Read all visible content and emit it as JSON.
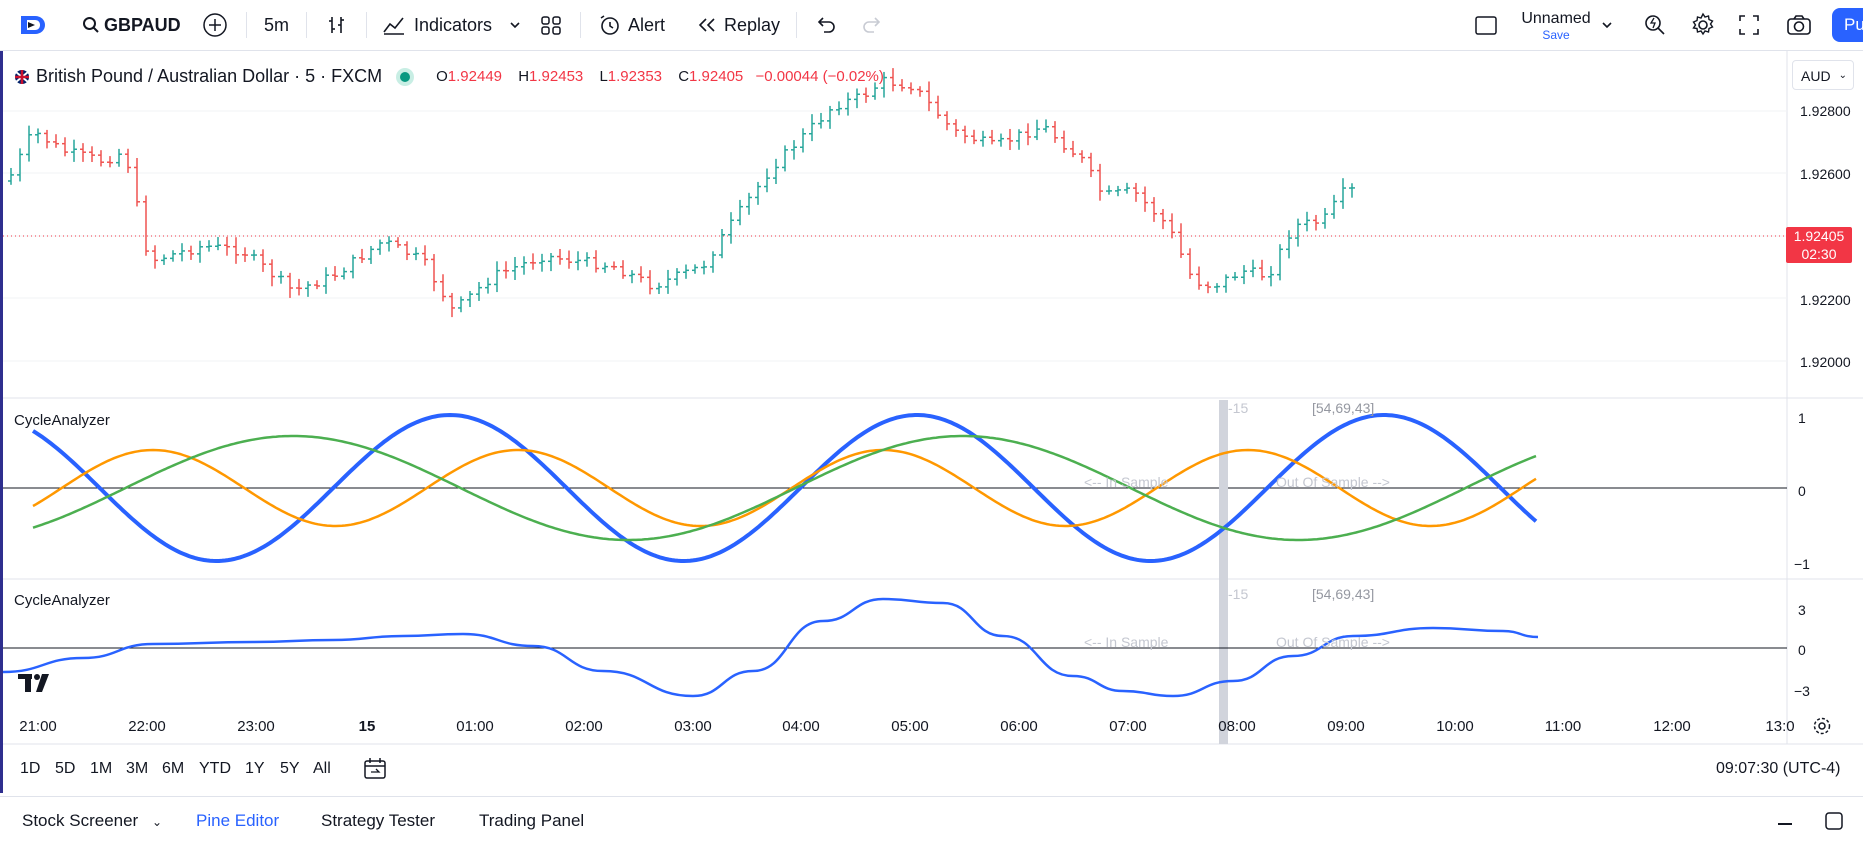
{
  "toolbar": {
    "symbol": "GBPAUD",
    "interval": "5m",
    "indicators_label": "Indicators",
    "alert_label": "Alert",
    "replay_label": "Replay",
    "layout_name": "Unnamed",
    "save_label": "Save",
    "publish_label": "Pu"
  },
  "legend": {
    "title": "British Pound / Australian Dollar · 5 · FXCM",
    "o_key": "O",
    "o_val": "1.92449",
    "h_key": "H",
    "h_val": "1.92453",
    "l_key": "L",
    "l_val": "1.92353",
    "c_key": "C",
    "c_val": "1.92405",
    "change": "−0.00044 (−0.02%)"
  },
  "currency_button": "AUD",
  "price_axis": {
    "ticks": [
      "1.92800",
      "1.92600",
      "1.92200",
      "1.92000"
    ],
    "last_price": "1.92405",
    "countdown": "02:30"
  },
  "pane1": {
    "title": "CycleAnalyzer",
    "axis": [
      "1",
      "0",
      "−1"
    ],
    "marker": "-15",
    "cycles": "[54,69,43]",
    "in_sample": "<-- In Sample",
    "out_sample": "Out Of Sample -->"
  },
  "pane2": {
    "title": "CycleAnalyzer",
    "axis": [
      "3",
      "0",
      "−3"
    ],
    "marker": "-15",
    "cycles": "[54,69,43]",
    "in_sample": "<-- In Sample",
    "out_sample": "Out Of Sample -->"
  },
  "time_axis": [
    "21:00",
    "22:00",
    "23:00",
    "15",
    "01:00",
    "02:00",
    "03:00",
    "04:00",
    "05:00",
    "06:00",
    "07:00",
    "08:00",
    "09:00",
    "10:00",
    "11:00",
    "12:00",
    "13:0"
  ],
  "range_buttons": [
    "1D",
    "5D",
    "1M",
    "3M",
    "6M",
    "YTD",
    "1Y",
    "5Y",
    "All"
  ],
  "clock": "09:07:30 (UTC-4)",
  "bottom_tabs": [
    "Stock Screener",
    "Pine Editor",
    "Strategy Tester",
    "Trading Panel"
  ],
  "colors": {
    "up": "#26a69a",
    "down": "#ef5350",
    "blue_cycle": "#2962ff",
    "orange_cycle": "#ff9800",
    "green_cycle": "#4caf50",
    "accent": "#2962ff",
    "price_tag": "#f23645"
  }
}
